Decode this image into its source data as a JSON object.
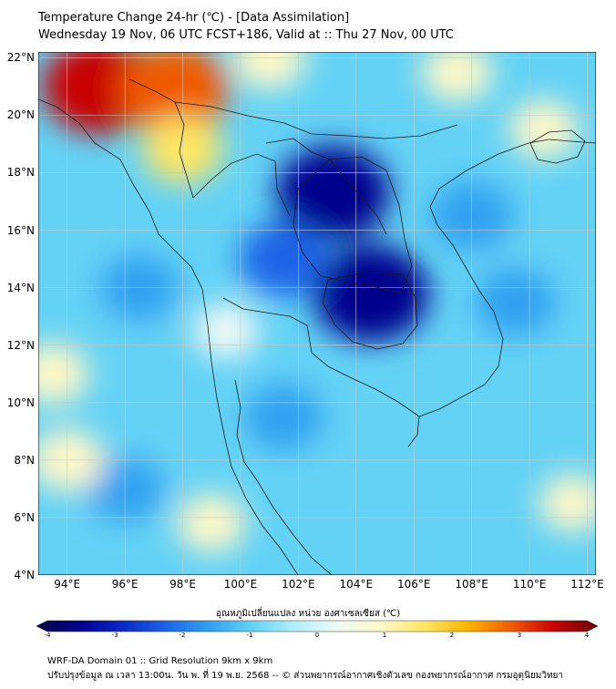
{
  "title": {
    "line1": "Temperature Change 24-hr (℃) - [Data Assimilation]",
    "line2": "Wednesday 19 Nov, 06 UTC FCST+186, Valid at :: Thu 27 Nov, 00 UTC"
  },
  "axes": {
    "lat_labels": [
      "22°N",
      "20°N",
      "18°N",
      "16°N",
      "14°N",
      "12°N",
      "10°N",
      "8°N",
      "6°N",
      "4°N"
    ],
    "lon_labels": [
      "94°E",
      "96°E",
      "98°E",
      "100°E",
      "102°E",
      "104°E",
      "106°E",
      "108°E",
      "110°E",
      "112°E"
    ],
    "lat_values": [
      22,
      20,
      18,
      16,
      14,
      12,
      10,
      8,
      6,
      4
    ],
    "lon_values": [
      94,
      96,
      98,
      100,
      102,
      104,
      106,
      108,
      110,
      112
    ],
    "lon_range": [
      93,
      112.3
    ],
    "lat_range": [
      4,
      22.2
    ]
  },
  "colorbar": {
    "title": "อุณหภูมิเปลี่ยนแปลง หน่วย องศาเซลเซียส (℃)",
    "labels": [
      "-4",
      "-3",
      "-2",
      "-1",
      "0",
      "1",
      "2",
      "3",
      "4"
    ],
    "values": [
      -4,
      -3,
      -2,
      -1,
      0,
      1,
      2,
      3,
      4
    ]
  },
  "footer": {
    "line1": "WRF-DA Domain 01 :: Grid Resolution 9km x 9km",
    "line2": "ปรับปรุงข้อมูล ณ เวลา 13:00น. วัน พ. ที่ 19 พ.ย. 2568 -- © ส่วนพยากรณ์อากาศเชิงตัวเลข กองพยากรณ์อากาศ กรมอุตุนิยมวิทยา"
  },
  "anomalies": [
    {
      "name": "cold-core-northeast-thailand",
      "lon": 103.2,
      "lat": 17.3,
      "value": -3.2
    },
    {
      "name": "cold-core-cambodia",
      "lon": 104.5,
      "lat": 13.8,
      "value": -3.4
    },
    {
      "name": "cold-central-thailand",
      "lon": 101.5,
      "lat": 15.0,
      "value": -1.9
    },
    {
      "name": "cold-gulf-of-thailand",
      "lon": 101.5,
      "lat": 9.5,
      "value": -1.3
    },
    {
      "name": "cold-south-china-sea",
      "lon": 109.5,
      "lat": 13.5,
      "value": -1.4
    },
    {
      "name": "cold-andaman",
      "lon": 96.5,
      "lat": 14.0,
      "value": -1.3
    },
    {
      "name": "cold-southwest",
      "lon": 96.0,
      "lat": 7.0,
      "value": -1.3
    },
    {
      "name": "cold-vietnam-coast",
      "lon": 108.0,
      "lat": 16.5,
      "value": -1.5
    },
    {
      "name": "warm-core-myanmar-west",
      "lon": 95.1,
      "lat": 21.0,
      "value": 3.2
    },
    {
      "name": "warm-core-myanmar-east",
      "lon": 97.7,
      "lat": 20.9,
      "value": 3.0
    },
    {
      "name": "warm-shan-state",
      "lon": 98.0,
      "lat": 18.8,
      "value": 1.4
    },
    {
      "name": "warm-north-band",
      "lon": 101.0,
      "lat": 22.0,
      "value": 1.1
    },
    {
      "name": "warm-south-china",
      "lon": 107.5,
      "lat": 21.5,
      "value": 0.9
    },
    {
      "name": "warm-hainan",
      "lon": 110.5,
      "lat": 19.5,
      "value": 0.8
    },
    {
      "name": "warm-west-edge",
      "lon": 93.5,
      "lat": 11.0,
      "value": 1.0
    },
    {
      "name": "warm-southwest",
      "lon": 94.0,
      "lat": 8.0,
      "value": 1.1
    },
    {
      "name": "warm-malaysia",
      "lon": 99.0,
      "lat": 5.8,
      "value": 0.8
    },
    {
      "name": "warm-south-china-sea",
      "lon": 111.5,
      "lat": 6.5,
      "value": 0.7
    },
    {
      "name": "warm-andaman-coast",
      "lon": 99.5,
      "lat": 12.5,
      "value": 0.6
    }
  ],
  "colors": {
    "scale": [
      "#000046",
      "#00008c",
      "#0a28c8",
      "#1e64e6",
      "#32a0f0",
      "#64d2f5",
      "#b4eefa",
      "#f0faf5",
      "#fff8c8",
      "#ffe664",
      "#ffb400",
      "#f05a00",
      "#c80000",
      "#640000"
    ],
    "grid": "#c8c8c8",
    "coastline": "#1a1a1a"
  }
}
